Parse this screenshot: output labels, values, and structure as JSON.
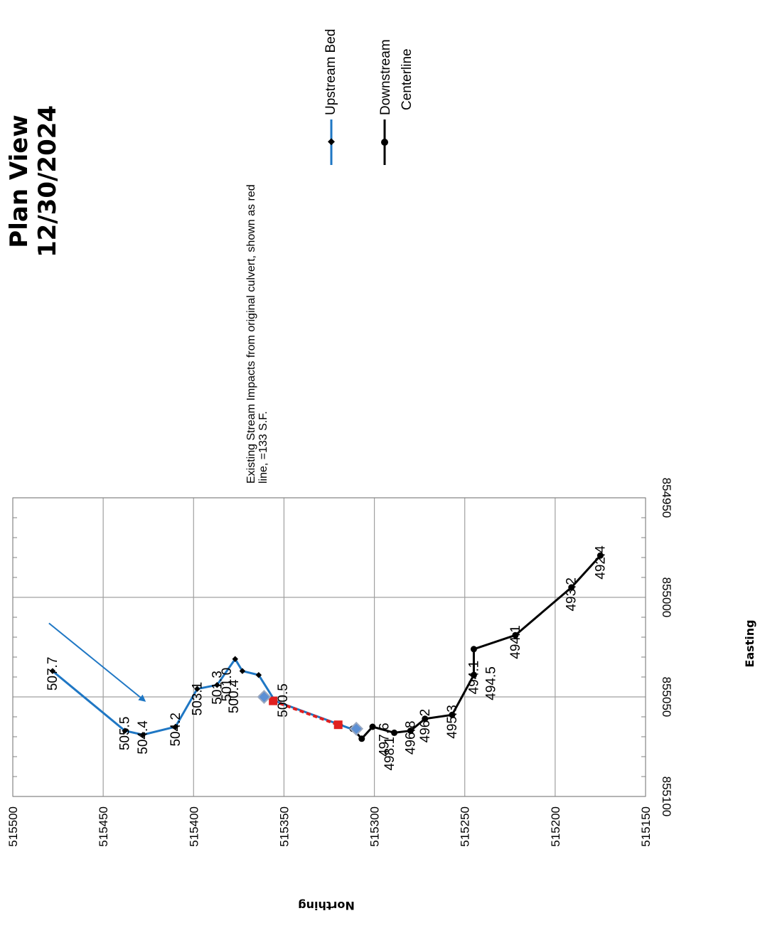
{
  "chart_data": {
    "type": "line",
    "title_lines": [
      "Plan View",
      "12/30/2024"
    ],
    "xlabel": "Northing",
    "ylabel": "Easting",
    "xlim": [
      515150,
      515500
    ],
    "ylim": [
      854950,
      855100
    ],
    "x_ticks": [
      "515500",
      "515450",
      "515400",
      "515350",
      "515300",
      "515250",
      "515200",
      "515150"
    ],
    "y_ticks": [
      "854950",
      "855000",
      "855050",
      "855100"
    ],
    "grid": true,
    "legend": {
      "placement": "top-right",
      "entries": [
        {
          "label_lines": [
            "Upstream Bed"
          ],
          "color": "#1f77c4"
        },
        {
          "label_lines": [
            "Downstream",
            "Centerline"
          ],
          "color": "#000000"
        }
      ]
    },
    "annotation_lines": [
      "Existing Stream Impacts from original culvert, shown as red",
      "line, =133 S.F."
    ],
    "series": [
      {
        "name": "Upstream Bed",
        "color": "#1f77c4",
        "marker": "diamond",
        "points": [
          {
            "x": 515478,
            "y": 855037,
            "label": "507.7"
          },
          {
            "x": 515438,
            "y": 855067,
            "label": "505.5"
          },
          {
            "x": 515428,
            "y": 855069,
            "label": "504.4"
          },
          {
            "x": 515410,
            "y": 855065,
            "label": "504.2"
          },
          {
            "x": 515398,
            "y": 855046,
            "label": "503.1"
          },
          {
            "x": 515387,
            "y": 855044,
            "label": "501.3"
          },
          {
            "x": 515377,
            "y": 855031,
            "label": "501.0"
          },
          {
            "x": 515373,
            "y": 855037,
            "label": "500.4"
          },
          {
            "x": 515364,
            "y": 855039,
            "label": "500.5"
          },
          {
            "x": 515355,
            "y": 855052,
            "label": ""
          },
          {
            "x": 515319,
            "y": 855064,
            "label": ""
          },
          {
            "x": 515310,
            "y": 855067,
            "label": ""
          }
        ]
      },
      {
        "name": "Downstream Centerline",
        "color": "#000000",
        "marker": "circle",
        "points": [
          {
            "x": 515312,
            "y": 855066,
            "label": ""
          },
          {
            "x": 515307,
            "y": 855071,
            "label": ""
          },
          {
            "x": 515301,
            "y": 855065,
            "label": "498.1"
          },
          {
            "x": 515289,
            "y": 855068,
            "label": "497.6"
          },
          {
            "x": 515280,
            "y": 855067,
            "label": "496.8"
          },
          {
            "x": 515272,
            "y": 855061,
            "label": "496.2"
          },
          {
            "x": 515257,
            "y": 855059,
            "label": "495.3"
          },
          {
            "x": 515245,
            "y": 855039,
            "label": "494.5"
          },
          {
            "x": 515245,
            "y": 855026,
            "label": "494.1"
          },
          {
            "x": 515222,
            "y": 855019,
            "label": "494.1"
          },
          {
            "x": 515191,
            "y": 854995,
            "label": "493.2"
          },
          {
            "x": 515175,
            "y": 854979,
            "label": "492.4"
          }
        ]
      },
      {
        "name": "",
        "color": "#e02020",
        "marker": "square",
        "points": [
          {
            "x": 515356,
            "y": 855052
          },
          {
            "x": 515320,
            "y": 855064
          }
        ]
      }
    ],
    "flow_arrow": {
      "from": {
        "x": 515480,
        "y": 855013
      },
      "to": {
        "x": 515427,
        "y": 855052
      },
      "color": "#1f77c4"
    },
    "culvert_ends": [
      {
        "x": 515361,
        "y": 855050
      },
      {
        "x": 515310,
        "y": 855066
      }
    ]
  }
}
